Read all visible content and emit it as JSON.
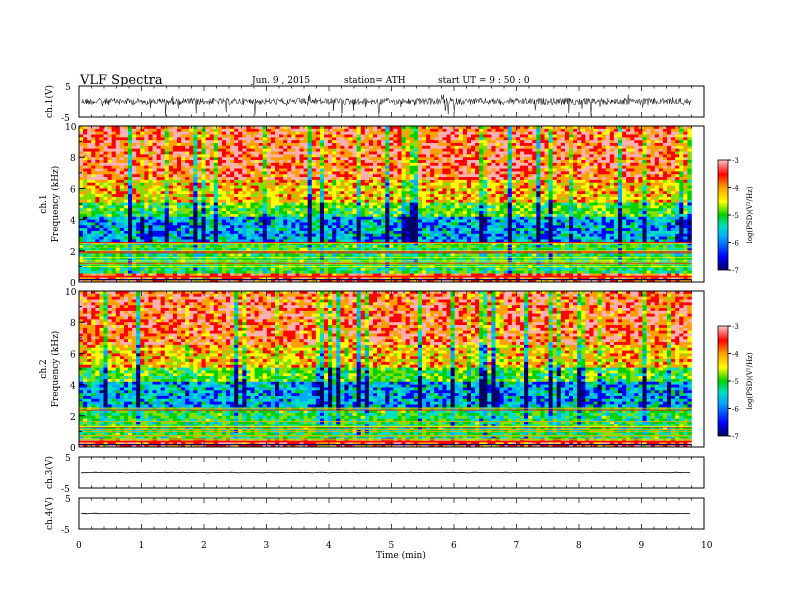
{
  "header": {
    "title": "VLF Spectra",
    "date": "Jun. 9 , 2015",
    "station": "station= ATH",
    "start": "start  UT  =   9  : 50 : 0"
  },
  "chart_data": [
    {
      "panel": "ch1-waveform",
      "type": "line",
      "ylabel": "ch.1(V)",
      "ylim": [
        -5,
        5
      ],
      "yticks": [
        "5",
        "-5"
      ],
      "series": [
        {
          "x": [
            0,
            1,
            2,
            3,
            4,
            5,
            6,
            7,
            8,
            9,
            9.8
          ],
          "y": [
            0,
            0.2,
            0,
            -0.2,
            0.2,
            -0.3,
            0,
            0.1,
            0,
            0.1,
            0
          ]
        }
      ],
      "color": "#000000"
    },
    {
      "panel": "ch1-spectrogram",
      "type": "heatmap",
      "ylabel_top": "ch.1",
      "ylabel": "Frequency  (kHz)",
      "ylim": [
        0,
        10
      ],
      "yticks": [
        "0",
        "2",
        "4",
        "6",
        "8",
        "10"
      ],
      "colorbar": {
        "label": "log(PSD)(V²/Hz)",
        "range": [
          -7,
          -3
        ],
        "ticks": [
          "-3",
          "-4",
          "-5",
          "-6",
          "-7"
        ]
      }
    },
    {
      "panel": "ch2-spectrogram",
      "type": "heatmap",
      "ylabel_top": "ch.2",
      "ylabel": "Frequency  (kHz)",
      "ylim": [
        0,
        10
      ],
      "yticks": [
        "0",
        "2",
        "4",
        "6",
        "8",
        "10"
      ],
      "colorbar": {
        "label": "log(PSD)(V²/Hz)",
        "range": [
          -7,
          -3
        ],
        "ticks": [
          "-3",
          "-4",
          "-5",
          "-6",
          "-7"
        ]
      }
    },
    {
      "panel": "ch3-waveform",
      "type": "line",
      "ylabel": "ch.3(V)",
      "ylim": [
        -5,
        5
      ],
      "yticks": [
        "5",
        "-5"
      ],
      "series": [
        {
          "x": [
            0,
            9.8
          ],
          "y": [
            0,
            0
          ]
        }
      ],
      "color": "#000000"
    },
    {
      "panel": "ch4-waveform",
      "type": "line",
      "ylabel": "ch.4(V)",
      "ylim": [
        -5,
        5
      ],
      "yticks": [
        "5",
        "-5"
      ],
      "series": [
        {
          "x": [
            0,
            9.8
          ],
          "y": [
            0,
            0
          ]
        }
      ],
      "color": "#000000"
    }
  ],
  "xaxis": {
    "label": "Time  (min)",
    "xlim": [
      0,
      10
    ],
    "ticks": [
      "0",
      "1",
      "2",
      "3",
      "4",
      "5",
      "6",
      "7",
      "8",
      "9",
      "10"
    ]
  },
  "colormap": [
    "#000066",
    "#0000ff",
    "#00aaff",
    "#00e0c0",
    "#00d000",
    "#80e000",
    "#ffff00",
    "#ffa000",
    "#ff0000",
    "#ffb0b0"
  ]
}
